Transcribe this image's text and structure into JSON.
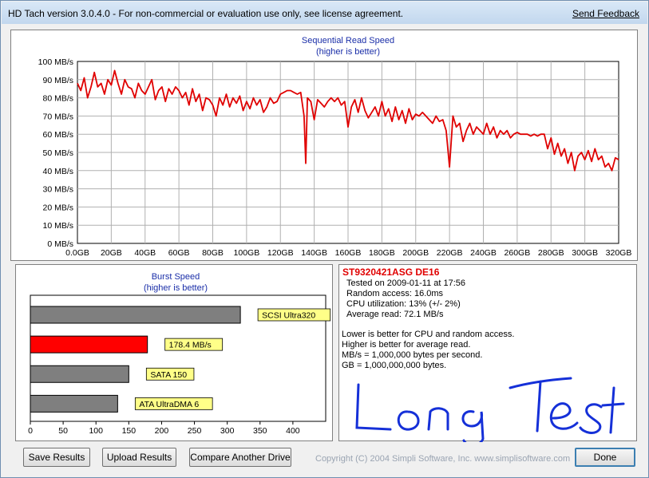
{
  "app": {
    "title": "HD Tach version 3.0.4.0  - For non-commercial or evaluation use only, see license agreement.",
    "send_feedback": "Send Feedback"
  },
  "colors": {
    "series": "#e00000",
    "burst_highlight": "#ff0000",
    "burst_gray": "#7f7f7f",
    "badge_fill": "#ffff88"
  },
  "sequential": {
    "chart_data": {
      "type": "line",
      "title": "Sequential Read Speed",
      "subtitle": "(higher is better)",
      "xlabel": "",
      "ylabel": "",
      "x_ticks": [
        "0.0GB",
        "20GB",
        "40GB",
        "60GB",
        "80GB",
        "100GB",
        "120GB",
        "140GB",
        "160GB",
        "180GB",
        "200GB",
        "220GB",
        "240GB",
        "260GB",
        "280GB",
        "300GB",
        "320GB"
      ],
      "y_ticks": [
        "0 MB/s",
        "10 MB/s",
        "20 MB/s",
        "30 MB/s",
        "40 MB/s",
        "50 MB/s",
        "60 MB/s",
        "70 MB/s",
        "80 MB/s",
        "90 MB/s",
        "100 MB/s"
      ],
      "xlim": [
        0,
        320
      ],
      "ylim": [
        0,
        100
      ],
      "grid": true,
      "series": [
        {
          "x": [
            0,
            2,
            4,
            6,
            8,
            10,
            12,
            14,
            16,
            18,
            20,
            22,
            24,
            26,
            28,
            30,
            32,
            34,
            36,
            38,
            40,
            42,
            44,
            46,
            48,
            50,
            52,
            54,
            56,
            58,
            60,
            62,
            64,
            66,
            68,
            70,
            72,
            74,
            76,
            78,
            80,
            82,
            84,
            86,
            88,
            90,
            92,
            94,
            96,
            98,
            100,
            102,
            104,
            106,
            108,
            110,
            112,
            114,
            116,
            118,
            120,
            122,
            124,
            126,
            128,
            130,
            132,
            134,
            135,
            136,
            138,
            140,
            142,
            144,
            146,
            148,
            150,
            152,
            154,
            156,
            158,
            160,
            162,
            164,
            166,
            168,
            170,
            172,
            174,
            176,
            178,
            180,
            182,
            184,
            186,
            188,
            190,
            192,
            194,
            196,
            198,
            200,
            202,
            204,
            206,
            208,
            210,
            212,
            214,
            216,
            218,
            220,
            222,
            224,
            226,
            228,
            230,
            232,
            234,
            236,
            238,
            240,
            242,
            244,
            246,
            248,
            250,
            252,
            254,
            256,
            258,
            260,
            262,
            264,
            266,
            268,
            270,
            272,
            274,
            276,
            278,
            280,
            282,
            284,
            286,
            288,
            290,
            292,
            294,
            296,
            298,
            300,
            302,
            304,
            306,
            308,
            310,
            312,
            314,
            316,
            318,
            320
          ],
          "y": [
            88,
            84,
            91,
            80,
            86,
            94,
            86,
            88,
            82,
            90,
            87,
            95,
            88,
            82,
            90,
            86,
            85,
            80,
            88,
            84,
            82,
            86,
            90,
            79,
            84,
            86,
            78,
            85,
            82,
            86,
            84,
            80,
            83,
            76,
            85,
            78,
            82,
            73,
            80,
            79,
            76,
            70,
            80,
            76,
            82,
            75,
            80,
            77,
            81,
            73,
            78,
            74,
            80,
            76,
            79,
            72,
            75,
            80,
            77,
            78,
            82,
            83,
            84,
            84,
            83,
            82,
            83,
            70,
            44,
            80,
            78,
            68,
            79,
            77,
            75,
            78,
            80,
            78,
            80,
            76,
            78,
            64,
            75,
            79,
            72,
            80,
            73,
            69,
            72,
            75,
            70,
            78,
            70,
            74,
            67,
            75,
            68,
            73,
            66,
            74,
            68,
            71,
            70,
            72,
            70,
            68,
            66,
            70,
            67,
            68,
            62,
            42,
            70,
            64,
            66,
            56,
            62,
            66,
            60,
            64,
            62,
            60,
            66,
            60,
            64,
            58,
            62,
            60,
            62,
            58,
            60,
            61,
            60,
            60,
            60,
            59,
            60,
            59,
            60,
            60,
            52,
            58,
            49,
            55,
            48,
            52,
            44,
            50,
            40,
            48,
            50,
            46,
            51,
            45,
            52,
            46,
            48,
            42,
            44,
            40,
            47,
            46
          ]
        }
      ]
    }
  },
  "burst": {
    "chart_data": {
      "type": "bar",
      "title": "Burst Speed",
      "subtitle": "(higher is better)",
      "xlim": [
        0,
        450
      ],
      "x_ticks": [
        "0",
        "50",
        "100",
        "150",
        "200",
        "250",
        "300",
        "350",
        "400"
      ],
      "categories": [
        "SCSI Ultra320",
        "178.4 MB/s",
        "SATA 150",
        "ATA UltraDMA 6"
      ],
      "values": [
        320,
        178.4,
        150,
        133
      ],
      "highlight_index": 1
    }
  },
  "info": {
    "drive": "ST9320421ASG DE16",
    "tested_on": "Tested on 2009-01-11 at 17:56",
    "random_access": "Random access: 16.0ms",
    "cpu_utilization": "CPU utilization: 13% (+/- 2%)",
    "average_read": "Average read: 72.1 MB/s",
    "note1": "Lower is better for CPU and random access.",
    "note2": "Higher is better for average read.",
    "note3": "MB/s = 1,000,000 bytes per second.",
    "note4": "GB = 1,000,000,000 bytes.",
    "handwriting": "Long Test"
  },
  "buttons": {
    "save": "Save Results",
    "upload": "Upload Results",
    "compare": "Compare Another Drive",
    "done": "Done"
  },
  "footer": {
    "copyright": "Copyright (C) 2004 Simpli Software, Inc. www.simplisoftware.com"
  }
}
